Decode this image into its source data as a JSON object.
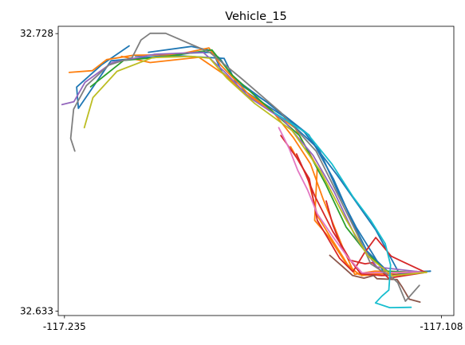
{
  "chart_data": {
    "type": "line",
    "title": "Vehicle_15",
    "xlabel": "",
    "ylabel": "",
    "xlim": [
      -117.2371,
      -117.1038
    ],
    "ylim": [
      32.6315,
      32.7305
    ],
    "x_ticks": [
      {
        "value": -117.235,
        "label": "-117.235"
      },
      {
        "value": -117.108,
        "label": "-117.108"
      }
    ],
    "y_ticks": [
      {
        "value": 32.728,
        "label": "32.728"
      },
      {
        "value": 32.633,
        "label": "32.633"
      }
    ],
    "grid": false,
    "legend": "none",
    "colors": [
      "#1f77b4",
      "#ff7f0e",
      "#2ca02c",
      "#d62728",
      "#9467bd",
      "#8c564b",
      "#e377c2",
      "#7f7f7f",
      "#bcbd22",
      "#17becf"
    ],
    "series": [
      {
        "color": "#1f77b4",
        "x": [
          -117.2111,
          -117.1988,
          -117.1855,
          -117.1827,
          -117.1781,
          -117.1667,
          -117.1541,
          -117.1432,
          -117.1301,
          -117.1223,
          -117.1117
        ],
        "y": [
          32.7203,
          32.7211,
          32.7216,
          32.7196,
          32.7129,
          32.7044,
          32.6942,
          32.6797,
          32.6608,
          32.6461,
          32.6467
        ]
      },
      {
        "color": "#1f77b4",
        "x": [
          -117.2132,
          -117.2225,
          -117.2309,
          -117.2303,
          -117.2193,
          -117.1996,
          -117.1812,
          -117.1774,
          -117.1658,
          -117.1526,
          -117.1443,
          -117.1387,
          -117.1331,
          -117.1254,
          -117.1117
        ],
        "y": [
          32.7238,
          32.7173,
          32.7097,
          32.7024,
          32.7187,
          32.7206,
          32.7195,
          32.7116,
          32.7039,
          32.6933,
          32.6781,
          32.6652,
          32.6536,
          32.6459,
          32.6467
        ]
      },
      {
        "color": "#1f77b4",
        "x": [
          -117.2067,
          -117.1923,
          -117.1852,
          -117.1819,
          -117.1762,
          -117.1613,
          -117.1492,
          -117.1427,
          -117.1367,
          -117.1309,
          -117.1267,
          -117.1137
        ],
        "y": [
          32.7216,
          32.7236,
          32.7221,
          32.7148,
          32.7096,
          32.6998,
          32.6883,
          32.6735,
          32.6617,
          32.6522,
          32.6452,
          32.6463
        ]
      },
      {
        "color": "#ff7f0e",
        "x": [
          -117.2158,
          -117.2061,
          -117.1897,
          -117.1801,
          -117.1744,
          -117.1652,
          -117.1578,
          -117.1521,
          -117.1478,
          -117.1412,
          -117.1372,
          -117.1304,
          -117.1143
        ],
        "y": [
          32.7202,
          32.7181,
          32.7199,
          32.7133,
          32.7076,
          32.7018,
          32.6923,
          32.6834,
          32.6712,
          32.6548,
          32.6456,
          32.6467,
          32.6463
        ]
      },
      {
        "color": "#ff7f0e",
        "x": [
          -117.2334,
          -117.2256,
          -117.2208,
          -117.2117,
          -117.1972,
          -117.1863,
          -117.1824,
          -117.1732,
          -117.1573,
          -117.1498,
          -117.1507,
          -117.1458,
          -117.1401,
          -117.1357,
          -117.1152
        ],
        "y": [
          32.7147,
          32.7153,
          32.7191,
          32.7206,
          32.7208,
          32.7231,
          32.7173,
          32.7075,
          32.6957,
          32.6824,
          32.6641,
          32.6582,
          32.6494,
          32.6455,
          32.6465
        ]
      },
      {
        "color": "#ff7f0e",
        "x": [
          -117.1588,
          -117.1532,
          -117.1497,
          -117.1453,
          -117.1421,
          -117.1389,
          -117.1349,
          -117.1162
        ],
        "y": [
          32.6893,
          32.6792,
          32.6655,
          32.6582,
          32.6531,
          32.6478,
          32.6452,
          32.6466
        ]
      },
      {
        "color": "#2ca02c",
        "x": [
          -117.2262,
          -117.2151,
          -117.2012,
          -117.1853,
          -117.1785,
          -117.1677,
          -117.1558,
          -117.1471,
          -117.1401,
          -117.1336,
          -117.1267,
          -117.1143
        ],
        "y": [
          32.7098,
          32.7188,
          32.7201,
          32.7224,
          32.7138,
          32.7039,
          32.6931,
          32.6767,
          32.6618,
          32.6534,
          32.6467,
          32.6462
        ]
      },
      {
        "color": "#d62728",
        "x": [
          -117.1621,
          -117.1567,
          -117.1525,
          -117.1498,
          -117.1462,
          -117.1423,
          -117.1378,
          -117.1341,
          -117.1301,
          -117.1249,
          -117.1132
        ],
        "y": [
          32.6931,
          32.6854,
          32.6783,
          32.6641,
          32.6579,
          32.6511,
          32.6465,
          32.6527,
          32.6582,
          32.6518,
          32.6462
        ]
      },
      {
        "color": "#d62728",
        "x": [
          -117.1568,
          -117.1537,
          -117.1506,
          -117.1478,
          -117.1446,
          -117.1412,
          -117.1388,
          -117.1352,
          -117.1281,
          -117.1212,
          -117.1132
        ],
        "y": [
          32.6868,
          32.6798,
          32.6723,
          32.6667,
          32.6603,
          32.6548,
          32.6506,
          32.6458,
          32.6452,
          32.6455,
          32.6464
        ]
      },
      {
        "color": "#d62728",
        "x": [
          -117.1468,
          -117.1445,
          -117.1416,
          -117.1391,
          -117.1337,
          -117.1312,
          -117.1258,
          -117.1137
        ],
        "y": [
          32.6707,
          32.6623,
          32.6549,
          32.6505,
          32.6492,
          32.6496,
          32.6443,
          32.6462
        ]
      },
      {
        "color": "#9467bd",
        "x": [
          -117.2358,
          -117.2318,
          -117.2281,
          -117.2189,
          -117.2048,
          -117.1883,
          -117.1812,
          -117.1728,
          -117.1615,
          -117.1512,
          -117.1441,
          -117.1368,
          -117.1297,
          -117.1142
        ],
        "y": [
          32.7037,
          32.7047,
          32.7113,
          32.7181,
          32.7209,
          32.7216,
          32.7151,
          32.7062,
          32.6987,
          32.6863,
          32.6738,
          32.6582,
          32.6481,
          32.6463
        ]
      },
      {
        "color": "#8c564b",
        "x": [
          -117.1456,
          -117.1412,
          -117.1379,
          -117.1341,
          -117.1308,
          -117.1297,
          -117.1229,
          -117.1212,
          -117.1188,
          -117.1152
        ],
        "y": [
          32.6521,
          32.6482,
          32.6452,
          32.6443,
          32.6452,
          32.6441,
          32.6438,
          32.6412,
          32.6371,
          32.6361
        ]
      },
      {
        "color": "#e377c2",
        "x": [
          -117.1628,
          -117.1593,
          -117.1564,
          -117.1531,
          -117.1498,
          -117.1447,
          -117.1395,
          -117.1347,
          -117.1151
        ],
        "y": [
          32.6958,
          32.6887,
          32.6812,
          32.6745,
          32.6663,
          32.6587,
          32.6514,
          32.6461,
          32.6464
        ]
      },
      {
        "color": "#7f7f7f",
        "x": [
          -117.2315,
          -117.2329,
          -117.2319,
          -117.2276,
          -117.2201,
          -117.2122,
          -117.2092,
          -117.2061,
          -117.2009,
          -117.1861,
          -117.1752,
          -117.1623,
          -117.1502,
          -117.1433,
          -117.1362,
          -117.1318,
          -117.1243,
          -117.1227,
          -117.1201,
          -117.1154
        ],
        "y": [
          32.6878,
          32.6921,
          32.7021,
          32.7102,
          32.7172,
          32.7198,
          32.7258,
          32.7281,
          32.7281,
          32.7216,
          32.7125,
          32.7012,
          32.6878,
          32.6737,
          32.6591,
          32.6492,
          32.6443,
          32.6427,
          32.6364,
          32.6418
        ]
      },
      {
        "color": "#bcbd22",
        "x": [
          -117.2283,
          -117.2254,
          -117.2173,
          -117.2052,
          -117.1922,
          -117.1861,
          -117.1803,
          -117.1709,
          -117.1583,
          -117.1487,
          -117.1404,
          -117.1328,
          -117.1246,
          -117.1129
        ],
        "y": [
          32.6958,
          32.7061,
          32.7151,
          32.7198,
          32.7202,
          32.7196,
          32.7128,
          32.7041,
          32.6948,
          32.6809,
          32.6648,
          32.6519,
          32.6451,
          32.6463
        ]
      },
      {
        "color": "#17becf",
        "x": [
          -117.1641,
          -117.1532,
          -117.1448,
          -117.1378,
          -117.1318,
          -117.1269,
          -117.1251,
          -117.1257,
          -117.1281,
          -117.1302,
          -117.1254,
          -117.1182
        ],
        "y": [
          32.7008,
          32.6938,
          32.6833,
          32.6722,
          32.6641,
          32.6561,
          32.6488,
          32.6402,
          32.6381,
          32.6358,
          32.6342,
          32.6343
        ]
      }
    ]
  }
}
